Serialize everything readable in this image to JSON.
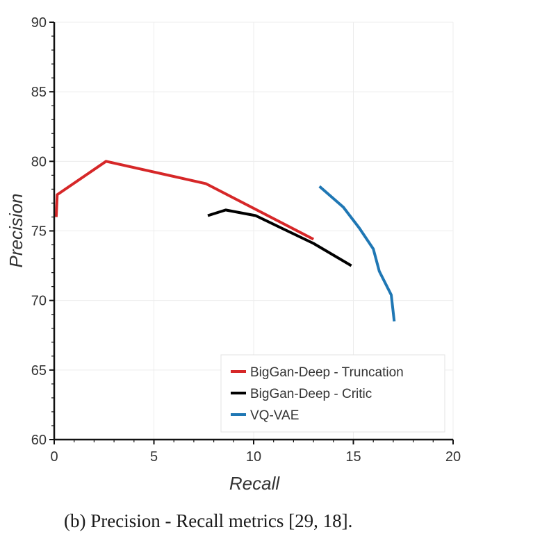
{
  "caption": "(b) Precision - Recall metrics [29, 18].",
  "chart_data": {
    "type": "line",
    "title": "",
    "xlabel": "Recall",
    "ylabel": "Precision",
    "xlim": [
      0,
      20
    ],
    "ylim": [
      60,
      90
    ],
    "xticks": [
      0,
      5,
      10,
      15,
      20
    ],
    "yticks": [
      60,
      65,
      70,
      75,
      80,
      85,
      90
    ],
    "xtick_labels": [
      "0",
      "5",
      "10",
      "15",
      "20"
    ],
    "ytick_labels": [
      "60",
      "65",
      "70",
      "75",
      "80",
      "85",
      "90"
    ],
    "grid": true,
    "legend_position": "bottom-right",
    "series": [
      {
        "name": "BigGan-Deep - Truncation",
        "color": "#d62728",
        "x": [
          0.1,
          0.15,
          2.6,
          7.6,
          13.0
        ],
        "y": [
          76.0,
          77.6,
          80.0,
          78.4,
          74.4
        ]
      },
      {
        "name": "BigGan-Deep - Critic",
        "color": "#000000",
        "x": [
          7.7,
          8.6,
          10.1,
          11.4,
          13.0,
          14.9
        ],
        "y": [
          76.1,
          76.5,
          76.1,
          75.2,
          74.1,
          72.5
        ]
      },
      {
        "name": "VQ-VAE",
        "color": "#1f77b4",
        "x": [
          13.3,
          14.5,
          15.3,
          16.0,
          16.3,
          16.9,
          17.05
        ],
        "y": [
          78.2,
          76.7,
          75.2,
          73.7,
          72.1,
          70.4,
          68.5
        ]
      }
    ]
  }
}
